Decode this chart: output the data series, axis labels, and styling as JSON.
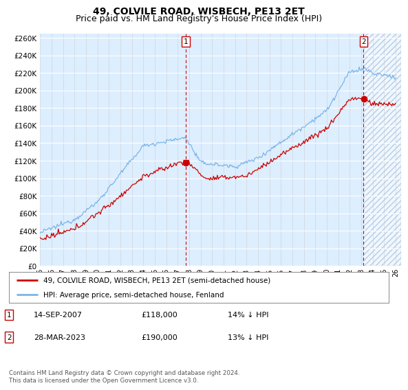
{
  "title": "49, COLVILE ROAD, WISBECH, PE13 2ET",
  "subtitle": "Price paid vs. HM Land Registry's House Price Index (HPI)",
  "ylim": [
    0,
    260000
  ],
  "yticks": [
    0,
    20000,
    40000,
    60000,
    80000,
    100000,
    120000,
    140000,
    160000,
    180000,
    200000,
    220000,
    240000,
    260000
  ],
  "xtick_labels": [
    "95",
    "96",
    "97",
    "98",
    "99",
    "00",
    "01",
    "02",
    "03",
    "04",
    "05",
    "06",
    "07",
    "08",
    "09",
    "10",
    "11",
    "12",
    "13",
    "14",
    "15",
    "16",
    "17",
    "18",
    "19",
    "20",
    "21",
    "22",
    "23",
    "24",
    "25",
    "26"
  ],
  "hpi_color": "#7ab4e8",
  "price_color": "#cc0000",
  "dashed_color": "#cc0000",
  "bg_color": "#ddeeff",
  "plot_bg": "#ffffff",
  "legend_entry1": "49, COLVILE ROAD, WISBECH, PE13 2ET (semi-detached house)",
  "legend_entry2": "HPI: Average price, semi-detached house, Fenland",
  "footnote": "Contains HM Land Registry data © Crown copyright and database right 2024.\nThis data is licensed under the Open Government Licence v3.0.",
  "title_fontsize": 10,
  "subtitle_fontsize": 9
}
